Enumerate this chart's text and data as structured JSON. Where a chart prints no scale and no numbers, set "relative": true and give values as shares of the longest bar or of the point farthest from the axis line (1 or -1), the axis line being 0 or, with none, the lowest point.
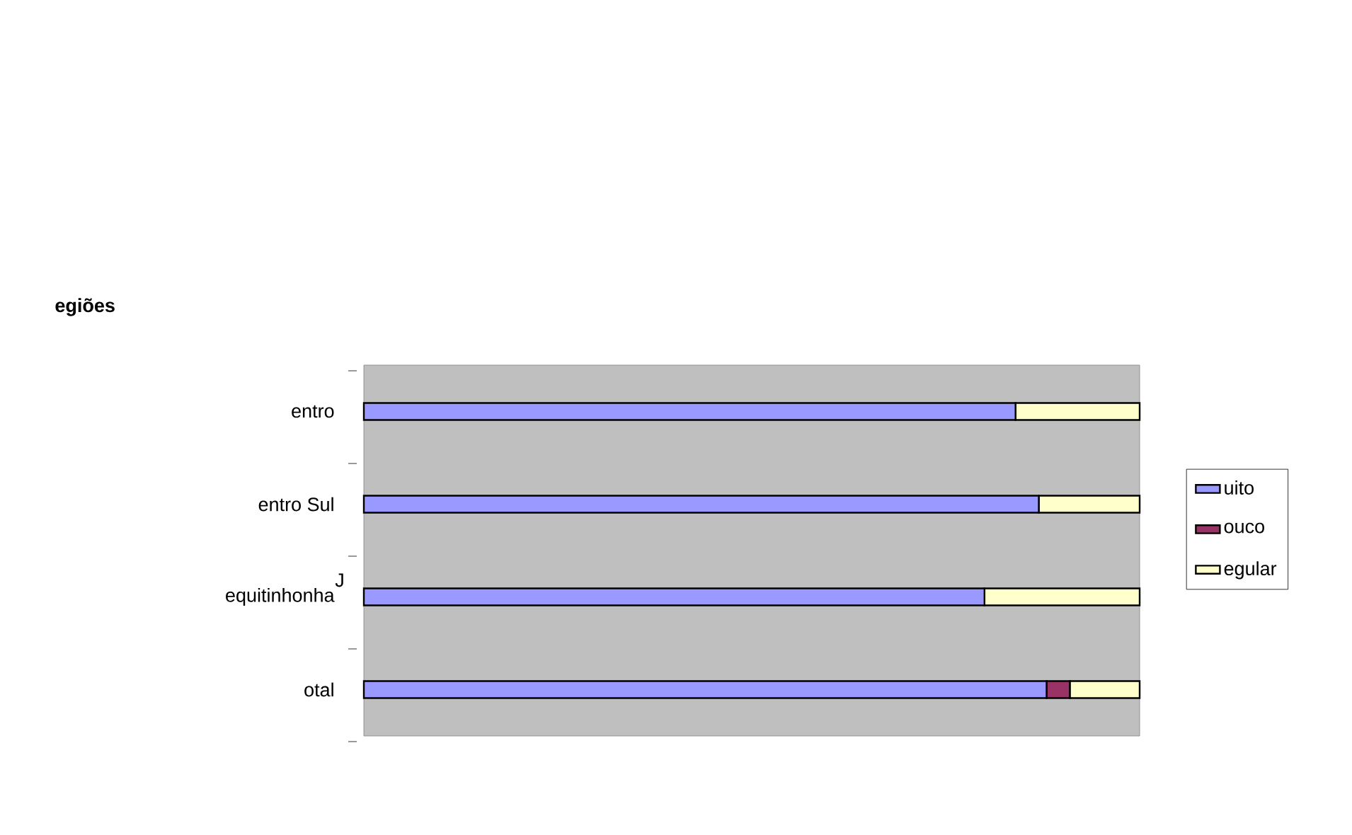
{
  "chart_data": {
    "type": "bar",
    "orientation": "horizontal",
    "stacked": true,
    "relative": true,
    "title": "egiões",
    "ylabel": "J",
    "categories": [
      "entro",
      "entro Sul",
      "equitinhonha",
      "otal"
    ],
    "series": [
      {
        "name": "uito",
        "color": "#9999ff",
        "values": [
          0.84,
          0.87,
          0.8,
          0.88
        ]
      },
      {
        "name": "ouco",
        "color": "#993366",
        "values": [
          0,
          0,
          0,
          0.03
        ]
      },
      {
        "name": "egular",
        "color": "#ffffcc",
        "values": [
          0.16,
          0.13,
          0.2,
          0.09
        ]
      }
    ],
    "legend": "right"
  }
}
